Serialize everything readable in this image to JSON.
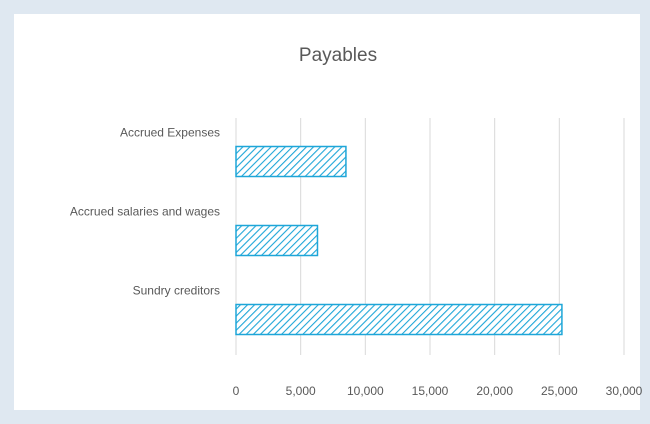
{
  "chart_data": {
    "type": "bar",
    "orientation": "horizontal",
    "title": "Payables",
    "categories": [
      "Accrued Expenses",
      "Accrued salaries and wages",
      "Sundry creditors"
    ],
    "values": [
      8500,
      6300,
      25200
    ],
    "color": "#1ea6d8",
    "pattern": "hatch",
    "xlim": [
      0,
      30000
    ],
    "xticks": [
      0,
      {
        "value": 5000,
        "label": "5,000"
      },
      {
        "value": 10000,
        "label": "10,000"
      },
      {
        "value": 15000,
        "label": "15,000"
      },
      {
        "value": 20000,
        "label": "20,000"
      },
      {
        "value": 25000,
        "label": "25,000"
      },
      {
        "value": 30000,
        "label": "30,000"
      }
    ],
    "grid": true
  }
}
